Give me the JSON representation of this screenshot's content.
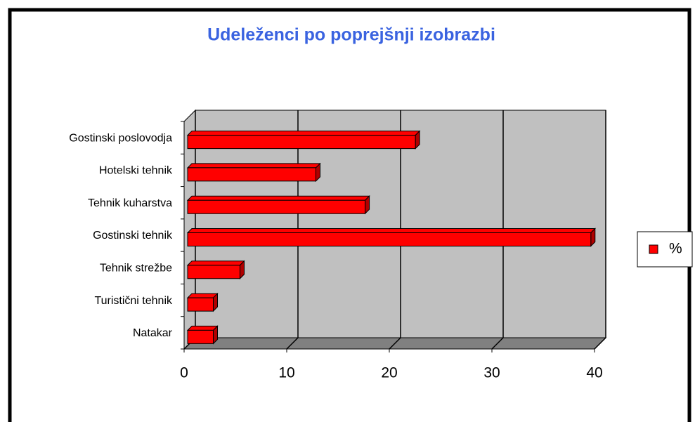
{
  "chart_data": {
    "type": "bar",
    "orientation": "horizontal",
    "title": "Udeleženci po poprejšnji izobrazbi",
    "categories": [
      "Gostinski poslovodja",
      "Hotelski tehnik",
      "Tehnik kuharstva",
      "Gostinski tehnik",
      "Tehnik strežbe",
      "Turistični tehnik",
      "Natakar"
    ],
    "series": [
      {
        "name": "%",
        "color": "#ff0000",
        "values": [
          22.2,
          12.5,
          17.3,
          39.3,
          5.1,
          2.5,
          2.5
        ]
      }
    ],
    "xlim": [
      0,
      40
    ],
    "xticks": [
      0,
      10,
      20,
      30,
      40
    ],
    "grid": true,
    "legend": "right"
  }
}
